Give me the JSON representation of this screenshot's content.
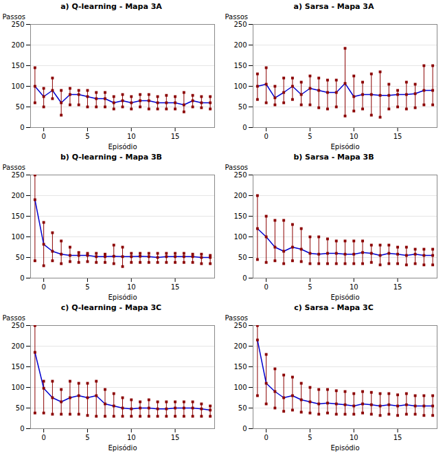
{
  "chart_data": [
    {
      "type": "errorbar",
      "title": "a) Q-learning -  Mapa 3A",
      "xlabel": "Episódio",
      "ylabel": "Passos",
      "x": [
        -1,
        0,
        1,
        2,
        3,
        4,
        5,
        6,
        7,
        8,
        9,
        10,
        11,
        12,
        13,
        14,
        15,
        16,
        17,
        18,
        19
      ],
      "series": [
        {
          "type": "line",
          "color": "#0000CD",
          "values": [
            100,
            75,
            90,
            60,
            80,
            80,
            75,
            70,
            70,
            60,
            65,
            60,
            65,
            65,
            60,
            60,
            60,
            55,
            65,
            60,
            60
          ]
        },
        {
          "type": "errorbar",
          "color": "#8B0000",
          "marker": "square",
          "values": [
            100,
            75,
            90,
            60,
            80,
            80,
            75,
            70,
            70,
            60,
            65,
            60,
            65,
            65,
            60,
            60,
            60,
            55,
            65,
            60,
            60
          ],
          "lo": [
            60,
            50,
            70,
            30,
            55,
            55,
            50,
            50,
            50,
            45,
            50,
            45,
            50,
            45,
            45,
            45,
            45,
            38,
            50,
            48,
            45
          ],
          "hi": [
            145,
            95,
            120,
            90,
            95,
            90,
            90,
            85,
            85,
            75,
            80,
            75,
            80,
            80,
            75,
            78,
            75,
            85,
            78,
            75,
            75
          ]
        }
      ],
      "xlim": [
        -1.5,
        19.5
      ],
      "xticks": [
        0,
        5,
        10,
        15
      ],
      "ylim": [
        0,
        250
      ],
      "yticks": [
        0,
        50,
        100,
        150,
        200,
        250
      ],
      "grid": "y"
    },
    {
      "type": "errorbar",
      "title": "b) Q-learning -  Mapa 3B",
      "xlabel": "Episódio",
      "ylabel": "Passos",
      "x": [
        -1,
        0,
        1,
        2,
        3,
        4,
        5,
        6,
        7,
        8,
        9,
        10,
        11,
        12,
        13,
        14,
        15,
        16,
        17,
        18,
        19
      ],
      "series": [
        {
          "type": "line",
          "color": "#0000CD",
          "values": [
            190,
            82,
            65,
            58,
            55,
            55,
            55,
            52,
            52,
            53,
            52,
            52,
            53,
            52,
            50,
            52,
            52,
            52,
            52,
            50,
            50
          ]
        },
        {
          "type": "errorbar",
          "color": "#8B0000",
          "marker": "square",
          "values": [
            190,
            82,
            65,
            58,
            55,
            55,
            55,
            52,
            52,
            53,
            52,
            52,
            53,
            52,
            50,
            52,
            52,
            52,
            52,
            50,
            50
          ],
          "lo": [
            42,
            30,
            42,
            35,
            40,
            38,
            40,
            38,
            38,
            35,
            28,
            38,
            38,
            38,
            38,
            38,
            38,
            38,
            38,
            35,
            35
          ],
          "hi": [
            250,
            135,
            110,
            90,
            75,
            62,
            60,
            60,
            58,
            80,
            75,
            60,
            60,
            60,
            60,
            60,
            60,
            60,
            58,
            58,
            55
          ]
        }
      ],
      "xlim": [
        -1.5,
        19.5
      ],
      "xticks": [
        0,
        5,
        10,
        15
      ],
      "ylim": [
        0,
        250
      ],
      "yticks": [
        0,
        50,
        100,
        150,
        200,
        250
      ],
      "grid": "y"
    },
    {
      "type": "errorbar",
      "title": "c) Q-learning -  Mapa 3C",
      "xlabel": "Episódio",
      "ylabel": "Passos",
      "x": [
        -1,
        0,
        1,
        2,
        3,
        4,
        5,
        6,
        7,
        8,
        9,
        10,
        11,
        12,
        13,
        14,
        15,
        16,
        17,
        18,
        19
      ],
      "series": [
        {
          "type": "line",
          "color": "#0000CD",
          "values": [
            185,
            98,
            75,
            65,
            75,
            80,
            75,
            80,
            60,
            55,
            50,
            48,
            50,
            50,
            48,
            48,
            50,
            50,
            50,
            48,
            45
          ]
        },
        {
          "type": "errorbar",
          "color": "#8B0000",
          "marker": "square",
          "values": [
            185,
            98,
            75,
            65,
            75,
            80,
            75,
            80,
            60,
            55,
            50,
            48,
            50,
            50,
            48,
            48,
            50,
            50,
            50,
            48,
            45
          ],
          "lo": [
            38,
            38,
            35,
            35,
            35,
            35,
            32,
            30,
            30,
            30,
            30,
            30,
            30,
            30,
            30,
            30,
            30,
            30,
            30,
            30,
            30
          ],
          "hi": [
            250,
            115,
            115,
            95,
            115,
            110,
            110,
            115,
            95,
            85,
            75,
            70,
            65,
            70,
            65,
            65,
            65,
            65,
            65,
            60,
            55
          ]
        }
      ],
      "xlim": [
        -1.5,
        19.5
      ],
      "xticks": [
        0,
        5,
        10,
        15
      ],
      "ylim": [
        0,
        250
      ],
      "yticks": [
        0,
        50,
        100,
        150,
        200,
        250
      ],
      "grid": "y"
    },
    {
      "type": "errorbar",
      "title": "a) Sarsa  -  Mapa 3A",
      "xlabel": "Episódio",
      "ylabel": "Passos",
      "x": [
        -1,
        0,
        1,
        2,
        3,
        4,
        5,
        6,
        7,
        8,
        9,
        10,
        11,
        12,
        13,
        14,
        15,
        16,
        17,
        18,
        19
      ],
      "series": [
        {
          "type": "line",
          "color": "#0000CD",
          "values": [
            100,
            105,
            72,
            85,
            100,
            80,
            95,
            90,
            85,
            85,
            107,
            75,
            80,
            80,
            78,
            78,
            80,
            80,
            82,
            90,
            90
          ]
        },
        {
          "type": "errorbar",
          "color": "#8B0000",
          "marker": "square",
          "values": [
            100,
            105,
            72,
            85,
            100,
            80,
            95,
            90,
            85,
            85,
            107,
            75,
            80,
            80,
            78,
            78,
            80,
            80,
            82,
            90,
            90
          ],
          "lo": [
            68,
            60,
            55,
            60,
            68,
            55,
            55,
            48,
            45,
            50,
            28,
            40,
            45,
            30,
            25,
            45,
            50,
            45,
            48,
            55,
            55
          ],
          "hi": [
            130,
            145,
            100,
            120,
            120,
            110,
            125,
            120,
            115,
            115,
            192,
            125,
            110,
            130,
            135,
            105,
            90,
            110,
            105,
            150,
            150
          ]
        }
      ],
      "xlim": [
        -1.5,
        19.5
      ],
      "xticks": [
        0,
        5,
        10,
        15
      ],
      "ylim": [
        0,
        250
      ],
      "yticks": [
        0,
        50,
        100,
        150,
        200,
        250
      ],
      "grid": "y"
    },
    {
      "type": "errorbar",
      "title": "b) Sarsa  -  Mapa 3B",
      "xlabel": "Episódio",
      "ylabel": "Passos",
      "x": [
        -1,
        0,
        1,
        2,
        3,
        4,
        5,
        6,
        7,
        8,
        9,
        10,
        11,
        12,
        13,
        14,
        15,
        16,
        17,
        18,
        19
      ],
      "series": [
        {
          "type": "line",
          "color": "#0000CD",
          "values": [
            120,
            100,
            75,
            65,
            75,
            70,
            60,
            58,
            60,
            60,
            58,
            58,
            62,
            60,
            55,
            60,
            58,
            55,
            58,
            55,
            55
          ]
        },
        {
          "type": "errorbar",
          "color": "#8B0000",
          "marker": "square",
          "values": [
            120,
            100,
            75,
            65,
            75,
            70,
            60,
            58,
            60,
            60,
            58,
            58,
            62,
            60,
            55,
            60,
            58,
            55,
            58,
            55,
            55
          ],
          "lo": [
            45,
            38,
            42,
            35,
            42,
            40,
            35,
            35,
            35,
            35,
            35,
            35,
            35,
            38,
            32,
            35,
            35,
            32,
            35,
            32,
            32
          ],
          "hi": [
            200,
            150,
            140,
            140,
            130,
            120,
            100,
            100,
            95,
            90,
            90,
            90,
            90,
            80,
            80,
            80,
            75,
            75,
            70,
            70,
            70
          ]
        }
      ],
      "xlim": [
        -1.5,
        19.5
      ],
      "xticks": [
        0,
        5,
        10,
        15
      ],
      "ylim": [
        0,
        250
      ],
      "yticks": [
        0,
        50,
        100,
        150,
        200,
        250
      ],
      "grid": "y"
    },
    {
      "type": "errorbar",
      "title": "c) Sarsa  -  Mapa 3C",
      "xlabel": "Episódio",
      "ylabel": "Passos",
      "x": [
        -1,
        0,
        1,
        2,
        3,
        4,
        5,
        6,
        7,
        8,
        9,
        10,
        11,
        12,
        13,
        14,
        15,
        16,
        17,
        18,
        19
      ],
      "series": [
        {
          "type": "line",
          "color": "#0000CD",
          "values": [
            215,
            110,
            90,
            75,
            80,
            70,
            65,
            60,
            62,
            60,
            58,
            55,
            60,
            58,
            55,
            58,
            55,
            58,
            55,
            55,
            55
          ]
        },
        {
          "type": "errorbar",
          "color": "#8B0000",
          "marker": "square",
          "values": [
            215,
            110,
            90,
            75,
            80,
            70,
            65,
            60,
            62,
            60,
            58,
            55,
            60,
            58,
            55,
            58,
            55,
            58,
            55,
            55,
            55
          ],
          "lo": [
            80,
            60,
            50,
            42,
            45,
            40,
            38,
            35,
            38,
            35,
            35,
            35,
            38,
            35,
            32,
            35,
            32,
            35,
            35,
            32,
            32
          ],
          "hi": [
            250,
            180,
            145,
            130,
            125,
            110,
            100,
            95,
            95,
            92,
            90,
            85,
            90,
            88,
            85,
            85,
            82,
            85,
            80,
            80,
            80
          ]
        }
      ],
      "xlim": [
        -1.5,
        19.5
      ],
      "xticks": [
        0,
        5,
        10,
        15
      ],
      "ylim": [
        0,
        250
      ],
      "yticks": [
        0,
        50,
        100,
        150,
        200,
        250
      ],
      "grid": "y"
    }
  ]
}
